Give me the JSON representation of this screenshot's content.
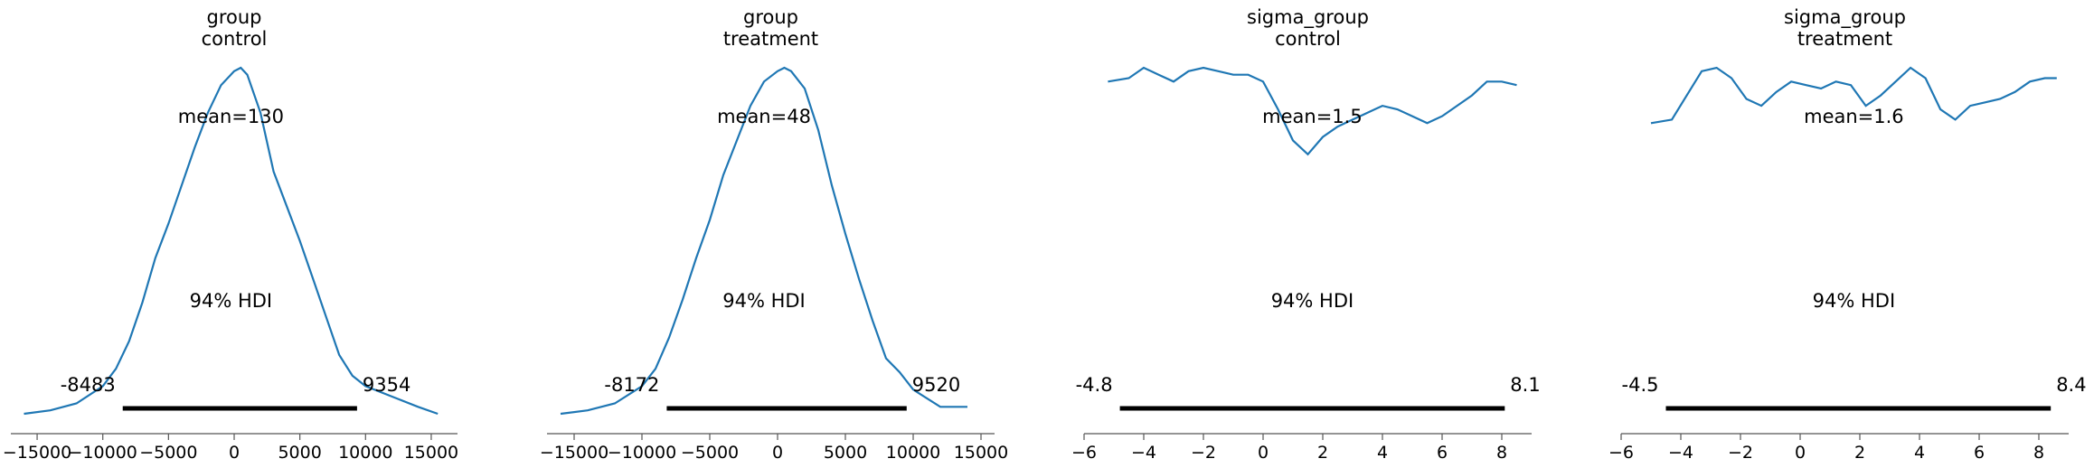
{
  "chart_data": [
    {
      "type": "line",
      "title": "group\ncontrol",
      "xlim": [
        -17000,
        17000
      ],
      "xticks": [
        -15000,
        -10000,
        -5000,
        0,
        5000,
        10000,
        15000
      ],
      "xtick_labels": [
        "−15000",
        "−10000",
        "−5000",
        "0",
        "5000",
        "10000",
        "15000"
      ],
      "mean_label": "mean=130",
      "hdi_label": "94% HDI",
      "hdi": [
        -8483,
        9354
      ],
      "hdi_low_label": "-8483",
      "hdi_high_label": "9354",
      "kde": {
        "x": [
          -16000,
          -14000,
          -12000,
          -10000,
          -9000,
          -8000,
          -7000,
          -6000,
          -5000,
          -4000,
          -3000,
          -2000,
          -1000,
          0,
          500,
          1000,
          2000,
          3000,
          4000,
          5000,
          6000,
          7000,
          8000,
          9000,
          10000,
          12000,
          14000,
          15500
        ],
        "y": [
          0.0,
          0.01,
          0.03,
          0.08,
          0.13,
          0.21,
          0.32,
          0.45,
          0.55,
          0.66,
          0.77,
          0.87,
          0.95,
          0.99,
          1.0,
          0.98,
          0.87,
          0.7,
          0.6,
          0.5,
          0.39,
          0.28,
          0.17,
          0.11,
          0.08,
          0.05,
          0.02,
          0.0
        ]
      }
    },
    {
      "type": "line",
      "title": "group\ntreatment",
      "xlim": [
        -17000,
        16000
      ],
      "xticks": [
        -15000,
        -10000,
        -5000,
        0,
        5000,
        10000,
        15000
      ],
      "xtick_labels": [
        "−15000",
        "−10000",
        "−5000",
        "0",
        "5000",
        "10000",
        "15000"
      ],
      "mean_label": "mean=48",
      "hdi_label": "94% HDI",
      "hdi": [
        -8172,
        9520
      ],
      "hdi_low_label": "-8172",
      "hdi_high_label": "9520",
      "kde": {
        "x": [
          -16000,
          -14000,
          -12000,
          -10000,
          -9000,
          -8000,
          -7000,
          -6000,
          -5000,
          -4000,
          -3000,
          -2000,
          -1000,
          0,
          500,
          1000,
          2000,
          3000,
          4000,
          5000,
          6000,
          7000,
          8000,
          9000,
          10000,
          12000,
          14000
        ],
        "y": [
          0.0,
          0.01,
          0.03,
          0.08,
          0.13,
          0.22,
          0.33,
          0.45,
          0.56,
          0.69,
          0.79,
          0.89,
          0.96,
          0.99,
          1.0,
          0.99,
          0.94,
          0.82,
          0.66,
          0.52,
          0.39,
          0.27,
          0.16,
          0.12,
          0.07,
          0.02,
          0.02
        ]
      }
    },
    {
      "type": "line",
      "title": "sigma_group\ncontrol",
      "xlim": [
        -6,
        9
      ],
      "xticks": [
        -6,
        -4,
        -2,
        0,
        2,
        4,
        6,
        8
      ],
      "xtick_labels": [
        "−6",
        "−4",
        "−2",
        "0",
        "2",
        "4",
        "6",
        "8"
      ],
      "mean_label": "mean=1.5",
      "hdi_label": "94% HDI",
      "hdi": [
        -4.8,
        8.1
      ],
      "hdi_low_label": "-4.8",
      "hdi_high_label": "8.1",
      "kde": {
        "x": [
          -5.2,
          -4.5,
          -4.0,
          -3.5,
          -3.0,
          -2.5,
          -2.0,
          -1.5,
          -1.0,
          -0.5,
          0.0,
          0.5,
          1.0,
          1.5,
          2.0,
          2.5,
          3.0,
          3.5,
          4.0,
          4.5,
          5.0,
          5.5,
          6.0,
          6.5,
          7.0,
          7.5,
          8.0,
          8.5
        ],
        "y": [
          0.96,
          0.97,
          1.0,
          0.98,
          0.96,
          0.99,
          1.0,
          0.99,
          0.98,
          0.98,
          0.96,
          0.88,
          0.79,
          0.75,
          0.8,
          0.83,
          0.85,
          0.87,
          0.89,
          0.88,
          0.86,
          0.84,
          0.86,
          0.89,
          0.92,
          0.96,
          0.96,
          0.95
        ]
      }
    },
    {
      "type": "line",
      "title": "sigma_group\ntreatment",
      "xlim": [
        -6,
        9
      ],
      "xticks": [
        -6,
        -4,
        -2,
        0,
        2,
        4,
        6,
        8
      ],
      "xtick_labels": [
        "−6",
        "−4",
        "−2",
        "0",
        "2",
        "4",
        "6",
        "8"
      ],
      "mean_label": "mean=1.6",
      "hdi_label": "94% HDI",
      "hdi": [
        -4.5,
        8.4
      ],
      "hdi_low_label": "-4.5",
      "hdi_high_label": "8.4",
      "kde": {
        "x": [
          -5.0,
          -4.3,
          -3.8,
          -3.3,
          -2.8,
          -2.3,
          -1.8,
          -1.3,
          -0.8,
          -0.3,
          0.2,
          0.7,
          1.2,
          1.7,
          2.2,
          2.7,
          3.2,
          3.7,
          4.2,
          4.7,
          5.2,
          5.7,
          6.2,
          6.7,
          7.2,
          7.7,
          8.2,
          8.6
        ],
        "y": [
          0.84,
          0.85,
          0.92,
          0.99,
          1.0,
          0.97,
          0.91,
          0.89,
          0.93,
          0.96,
          0.95,
          0.94,
          0.96,
          0.95,
          0.89,
          0.92,
          0.96,
          1.0,
          0.97,
          0.88,
          0.85,
          0.89,
          0.9,
          0.91,
          0.93,
          0.96,
          0.97,
          0.97
        ]
      }
    }
  ]
}
